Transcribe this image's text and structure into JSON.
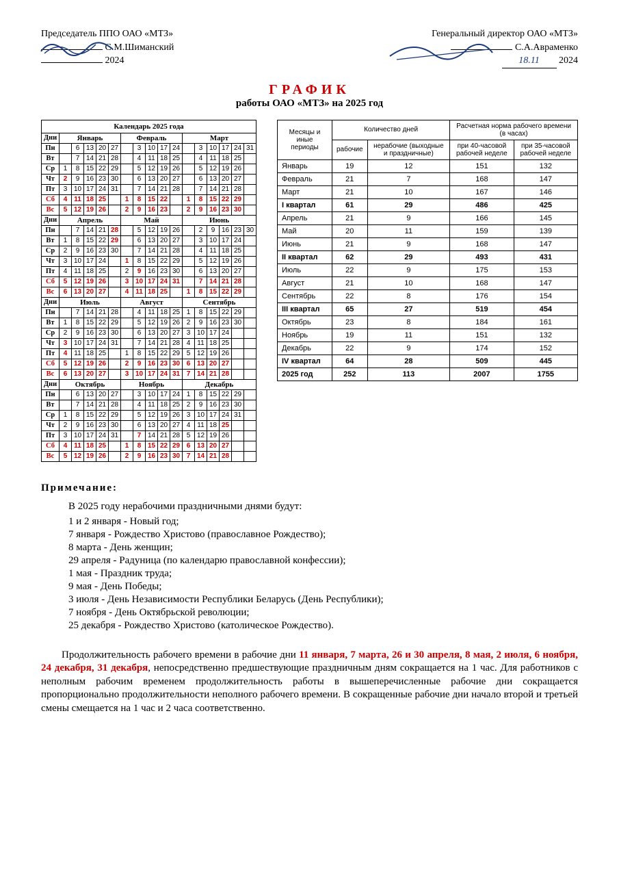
{
  "header": {
    "left_title": "Председатель ППО ОАО «МТЗ»",
    "left_name": "С.М.Шиманский",
    "left_year": "2024",
    "right_title": "Генеральный директор ОАО «МТЗ»",
    "right_name": "С.А.Авраменко",
    "right_date": "18.11",
    "right_year": "2024"
  },
  "title": {
    "main": "ГРАФИК",
    "sub": "работы ОАО «МТЗ» на 2025 год"
  },
  "calendar": {
    "title": "Календарь 2025 года",
    "days_hdr": "Дни",
    "day_labels": [
      "Пн",
      "Вт",
      "Ср",
      "Чт",
      "Пт",
      "Сб",
      "Вс"
    ],
    "red_rows": [
      5,
      6
    ],
    "quarters": [
      {
        "months": [
          "Январь",
          "Февраль",
          "Март"
        ],
        "grids": [
          [
            [
              "",
              "6",
              "13",
              "20",
              "27"
            ],
            [
              "",
              "7",
              "14",
              "21",
              "28"
            ],
            [
              "1",
              "8",
              "15",
              "22",
              "29"
            ],
            [
              "2r",
              "9",
              "16",
              "23",
              "30"
            ],
            [
              "3",
              "10",
              "17",
              "24",
              "31"
            ],
            [
              "4r",
              "11r",
              "18r",
              "25r",
              ""
            ],
            [
              "5r",
              "12r",
              "19r",
              "26r",
              ""
            ]
          ],
          [
            [
              "",
              "3",
              "10",
              "17",
              "24"
            ],
            [
              "",
              "4",
              "11",
              "18",
              "25"
            ],
            [
              "",
              "5",
              "12",
              "19",
              "26"
            ],
            [
              "",
              "6",
              "13",
              "20",
              "27"
            ],
            [
              "",
              "7",
              "14",
              "21",
              "28"
            ],
            [
              "1r",
              "8r",
              "15r",
              "22r",
              ""
            ],
            [
              "2r",
              "9r",
              "16r",
              "23r",
              ""
            ]
          ],
          [
            [
              "",
              "3",
              "10",
              "17",
              "24",
              "31"
            ],
            [
              "",
              "4",
              "11",
              "18",
              "25",
              ""
            ],
            [
              "",
              "5",
              "12",
              "19",
              "26",
              ""
            ],
            [
              "",
              "6",
              "13",
              "20",
              "27",
              ""
            ],
            [
              "",
              "7",
              "14",
              "21",
              "28",
              ""
            ],
            [
              "1r",
              "8r",
              "15r",
              "22r",
              "29r",
              ""
            ],
            [
              "2r",
              "9r",
              "16r",
              "23r",
              "30r",
              ""
            ]
          ]
        ]
      },
      {
        "months": [
          "Апрель",
          "Май",
          "Июнь"
        ],
        "grids": [
          [
            [
              "",
              "7",
              "14",
              "21",
              "28r"
            ],
            [
              "1",
              "8",
              "15",
              "22",
              "29r"
            ],
            [
              "2",
              "9",
              "16",
              "23",
              "30"
            ],
            [
              "3",
              "10",
              "17",
              "24",
              ""
            ],
            [
              "4",
              "11",
              "18",
              "25",
              ""
            ],
            [
              "5r",
              "12r",
              "19r",
              "26r",
              ""
            ],
            [
              "6r",
              "13r",
              "20r",
              "27r",
              ""
            ]
          ],
          [
            [
              "",
              "5",
              "12",
              "19",
              "26"
            ],
            [
              "",
              "6",
              "13",
              "20",
              "27"
            ],
            [
              "",
              "7",
              "14",
              "21",
              "28"
            ],
            [
              "1r",
              "8",
              "15",
              "22",
              "29"
            ],
            [
              "2",
              "9r",
              "16",
              "23",
              "30"
            ],
            [
              "3r",
              "10r",
              "17r",
              "24r",
              "31r"
            ],
            [
              "4r",
              "11r",
              "18r",
              "25r",
              ""
            ]
          ],
          [
            [
              "",
              "2",
              "9",
              "16",
              "23",
              "30"
            ],
            [
              "",
              "3",
              "10",
              "17",
              "24",
              ""
            ],
            [
              "",
              "4",
              "11",
              "18",
              "25",
              ""
            ],
            [
              "",
              "5",
              "12",
              "19",
              "26",
              ""
            ],
            [
              "",
              "6",
              "13",
              "20",
              "27",
              ""
            ],
            [
              "",
              "7r",
              "14r",
              "21r",
              "28r",
              ""
            ],
            [
              "1r",
              "8r",
              "15r",
              "22r",
              "29r",
              ""
            ]
          ]
        ]
      },
      {
        "months": [
          "Июль",
          "Август",
          "Сентябрь"
        ],
        "grids": [
          [
            [
              "",
              "7",
              "14",
              "21",
              "28"
            ],
            [
              "1",
              "8",
              "15",
              "22",
              "29"
            ],
            [
              "2",
              "9",
              "16",
              "23",
              "30"
            ],
            [
              "3r",
              "10",
              "17",
              "24",
              "31"
            ],
            [
              "4r",
              "11",
              "18",
              "25",
              ""
            ],
            [
              "5r",
              "12r",
              "19r",
              "26r",
              ""
            ],
            [
              "6r",
              "13r",
              "20r",
              "27r",
              ""
            ]
          ],
          [
            [
              "",
              "4",
              "11",
              "18",
              "25"
            ],
            [
              "",
              "5",
              "12",
              "19",
              "26"
            ],
            [
              "",
              "6",
              "13",
              "20",
              "27"
            ],
            [
              "",
              "7",
              "14",
              "21",
              "28"
            ],
            [
              "1",
              "8",
              "15",
              "22",
              "29"
            ],
            [
              "2r",
              "9r",
              "16r",
              "23r",
              "30r"
            ],
            [
              "3r",
              "10r",
              "17r",
              "24r",
              "31r"
            ]
          ],
          [
            [
              "1",
              "8",
              "15",
              "22",
              "29"
            ],
            [
              "2",
              "9",
              "16",
              "23",
              "30"
            ],
            [
              "3",
              "10",
              "17",
              "24",
              ""
            ],
            [
              "4",
              "11",
              "18",
              "25",
              ""
            ],
            [
              "5",
              "12",
              "19",
              "26",
              ""
            ],
            [
              "6r",
              "13r",
              "20r",
              "27r",
              ""
            ],
            [
              "7r",
              "14r",
              "21r",
              "28r",
              ""
            ]
          ]
        ]
      },
      {
        "months": [
          "Октябрь",
          "Ноябрь",
          "Декабрь"
        ],
        "grids": [
          [
            [
              "",
              "6",
              "13",
              "20",
              "27"
            ],
            [
              "",
              "7",
              "14",
              "21",
              "28"
            ],
            [
              "1",
              "8",
              "15",
              "22",
              "29"
            ],
            [
              "2",
              "9",
              "16",
              "23",
              "30"
            ],
            [
              "3",
              "10",
              "17",
              "24",
              "31"
            ],
            [
              "4r",
              "11r",
              "18r",
              "25r",
              ""
            ],
            [
              "5r",
              "12r",
              "19r",
              "26r",
              ""
            ]
          ],
          [
            [
              "",
              "3",
              "10",
              "17",
              "24"
            ],
            [
              "",
              "4",
              "11",
              "18",
              "25"
            ],
            [
              "",
              "5",
              "12",
              "19",
              "26"
            ],
            [
              "",
              "6",
              "13",
              "20",
              "27"
            ],
            [
              "",
              "7r",
              "14",
              "21",
              "28"
            ],
            [
              "1r",
              "8r",
              "15r",
              "22r",
              "29r"
            ],
            [
              "2r",
              "9r",
              "16r",
              "23r",
              "30r"
            ]
          ],
          [
            [
              "1",
              "8",
              "15",
              "22",
              "29"
            ],
            [
              "2",
              "9",
              "16",
              "23",
              "30"
            ],
            [
              "3",
              "10",
              "17",
              "24",
              "31"
            ],
            [
              "4",
              "11",
              "18",
              "25r",
              ""
            ],
            [
              "5",
              "12",
              "19",
              "26",
              ""
            ],
            [
              "6r",
              "13r",
              "20r",
              "27r",
              ""
            ],
            [
              "7r",
              "14r",
              "21r",
              "28r",
              ""
            ]
          ]
        ]
      }
    ]
  },
  "norms": {
    "header": {
      "period": "Месяцы и иные периоды",
      "days_group": "Количество дней",
      "hours_group": "Расчетная норма рабочего времени (в часах)",
      "work_days": "рабочие",
      "nonwork_days": "нерабочие (выходные и праздничные)",
      "h40": "при 40-часовой рабочей неделе",
      "h35": "при 35-часовой рабочей неделе"
    },
    "rows": [
      {
        "period": "Январь",
        "w": "19",
        "nw": "12",
        "h40": "151",
        "h35": "132",
        "bold": false
      },
      {
        "period": "Февраль",
        "w": "21",
        "nw": "7",
        "h40": "168",
        "h35": "147",
        "bold": false
      },
      {
        "period": "Март",
        "w": "21",
        "nw": "10",
        "h40": "167",
        "h35": "146",
        "bold": false
      },
      {
        "period": "I квартал",
        "w": "61",
        "nw": "29",
        "h40": "486",
        "h35": "425",
        "bold": true
      },
      {
        "period": "Апрель",
        "w": "21",
        "nw": "9",
        "h40": "166",
        "h35": "145",
        "bold": false
      },
      {
        "period": "Май",
        "w": "20",
        "nw": "11",
        "h40": "159",
        "h35": "139",
        "bold": false
      },
      {
        "period": "Июнь",
        "w": "21",
        "nw": "9",
        "h40": "168",
        "h35": "147",
        "bold": false
      },
      {
        "period": "II квартал",
        "w": "62",
        "nw": "29",
        "h40": "493",
        "h35": "431",
        "bold": true
      },
      {
        "period": "Июль",
        "w": "22",
        "nw": "9",
        "h40": "175",
        "h35": "153",
        "bold": false
      },
      {
        "period": "Август",
        "w": "21",
        "nw": "10",
        "h40": "168",
        "h35": "147",
        "bold": false
      },
      {
        "period": "Сентябрь",
        "w": "22",
        "nw": "8",
        "h40": "176",
        "h35": "154",
        "bold": false
      },
      {
        "period": "III квартал",
        "w": "65",
        "nw": "27",
        "h40": "519",
        "h35": "454",
        "bold": true
      },
      {
        "period": "Октябрь",
        "w": "23",
        "nw": "8",
        "h40": "184",
        "h35": "161",
        "bold": false
      },
      {
        "period": "Ноябрь",
        "w": "19",
        "nw": "11",
        "h40": "151",
        "h35": "132",
        "bold": false
      },
      {
        "period": "Декабрь",
        "w": "22",
        "nw": "9",
        "h40": "174",
        "h35": "152",
        "bold": false
      },
      {
        "period": "IV квартал",
        "w": "64",
        "nw": "28",
        "h40": "509",
        "h35": "445",
        "bold": true
      },
      {
        "period": "2025 год",
        "w": "252",
        "nw": "113",
        "h40": "2007",
        "h35": "1755",
        "bold": true
      }
    ]
  },
  "notes": {
    "title": "Примечание:",
    "lead": "В 2025 году нерабочими праздничными днями будут:",
    "items": [
      "1 и 2 января - Новый год;",
      "7 января - Рождество Христово (православное Рождество);",
      "8 марта - День женщин;",
      "29 апреля - Радуница (по календарю православной конфессии);",
      "1 мая - Праздник труда;",
      "9 мая - День Победы;",
      "3 июля - День Независимости Республики Беларусь (День Республики);",
      "7 ноября - День Октябрьской революции;",
      "25  декабря - Рождество Христово (католическое Рождество)."
    ],
    "final_pre": "Продолжительность рабочего времени в рабочие дни ",
    "final_red": "11 января, 7 марта, 26 и 30 апреля, 8 мая, 2 июля, 6 ноября, 24 декабря, 31 декабря",
    "final_post": ", непосредственно предшествующие праздничным дням сокращается на 1 час. Для работников с неполным рабочим временем продолжительность работы в вышеперечисленные рабочие дни сокращается пропорционально продолжительности неполного рабочего времени. В сокращенные рабочие дни начало второй и третьей смены смещается на 1 час и 2 часа соответственно."
  },
  "style": {
    "red": "#c00000",
    "ink": "#1a3a7a"
  }
}
